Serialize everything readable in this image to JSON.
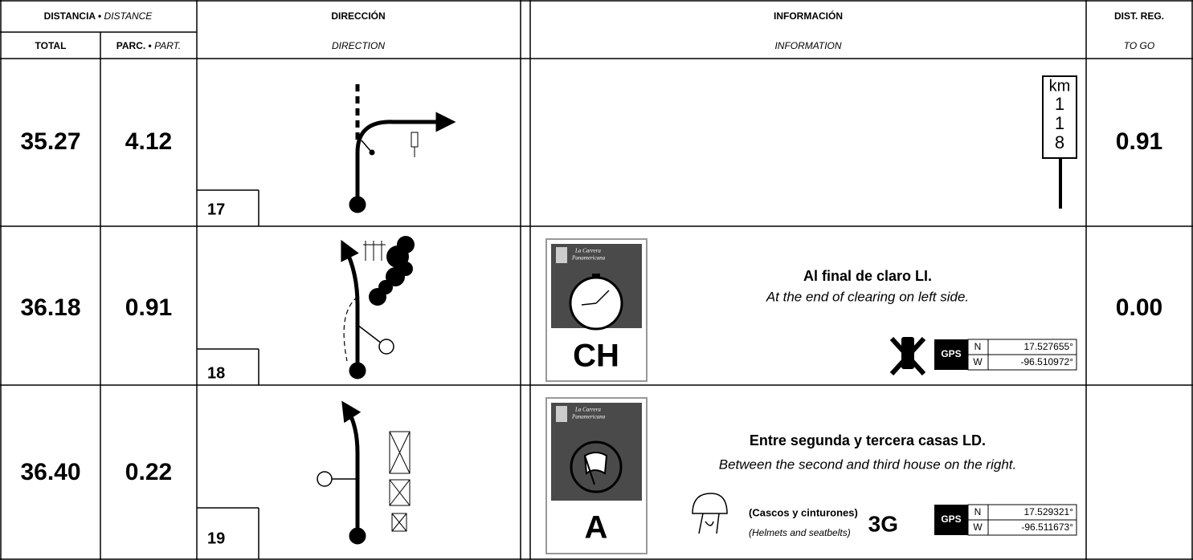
{
  "header": {
    "distance": "DISTANCIA •",
    "distance_en": "DISTANCE",
    "direction": "DIRECCIÓN",
    "direction_en": "DIRECTION",
    "information": "INFORMACIÓN",
    "information_en": "INFORMATION",
    "dist_reg": "DIST. REG.",
    "to_go": "TO GO",
    "total": "TOTAL",
    "partial": "PARC. •",
    "partial_en": "PART."
  },
  "rows": [
    {
      "total": "35.27",
      "partial": "4.12",
      "number": "17",
      "km_sign": [
        "km",
        "1",
        "1",
        "8"
      ],
      "to_go": "0.91"
    },
    {
      "total": "36.18",
      "partial": "0.91",
      "number": "18",
      "badge": {
        "logo": [
          "La Carrera",
          "Panamericana"
        ],
        "code": "CH"
      },
      "text": "Al final de claro LI.",
      "text_en": "At the end of clearing on left side.",
      "gps": {
        "label": "GPS",
        "n_label": "N",
        "n": "17.527655°",
        "w_label": "W",
        "w": "-96.510972°"
      },
      "to_go": "0.00"
    },
    {
      "total": "36.40",
      "partial": "0.22",
      "number": "19",
      "badge": {
        "logo": [
          "La Carrera",
          "Panamericana"
        ],
        "code": "A"
      },
      "text": "Entre segunda y tercera casas LD.",
      "text_en": "Between the second and third house on the right.",
      "note": "(Cascos y cinturones)",
      "note_en": "(Helmets and seatbelts)",
      "signal": "3G",
      "gps": {
        "label": "GPS",
        "n_label": "N",
        "n": "17.529321°",
        "w_label": "W",
        "w": "-96.511673°"
      }
    }
  ]
}
